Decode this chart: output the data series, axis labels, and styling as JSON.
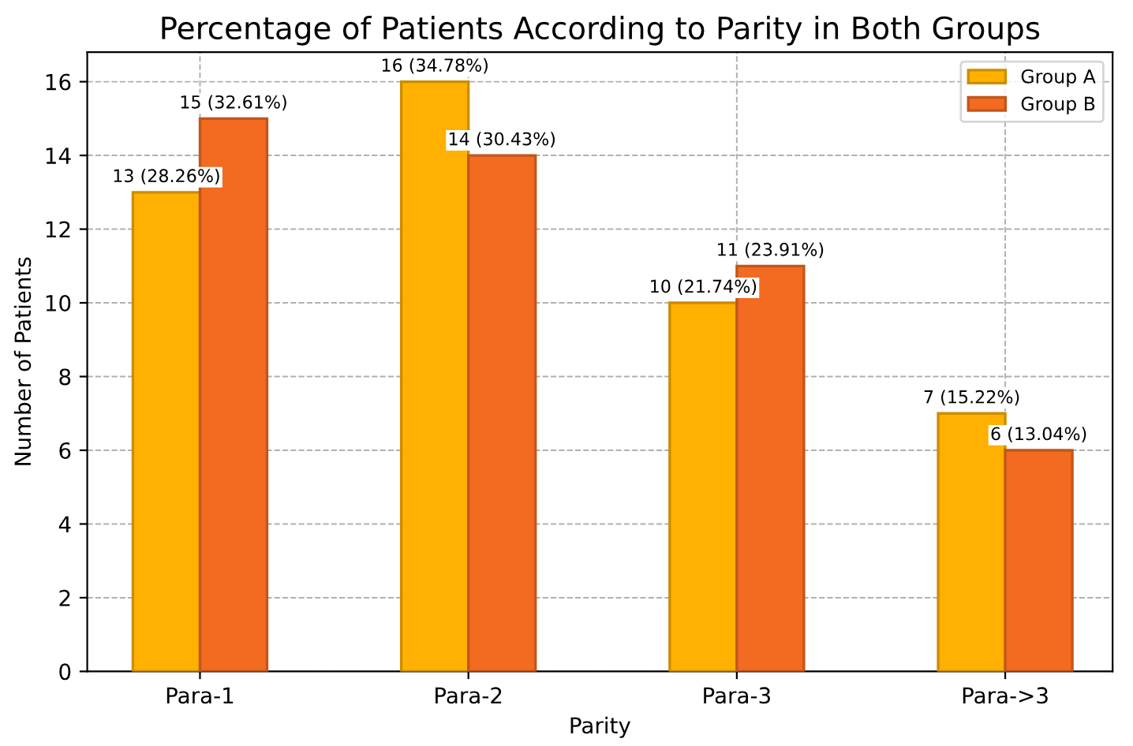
{
  "chart_data": {
    "type": "bar",
    "title": "Percentage of Patients According to Parity in Both Groups",
    "xlabel": "Parity",
    "ylabel": "Number of Patients",
    "categories": [
      "Para-1",
      "Para-2",
      "Para-3",
      "Para->3"
    ],
    "series": [
      {
        "name": "Group A",
        "color": "#ffb000",
        "values": [
          13,
          16,
          10,
          7
        ],
        "value_labels": [
          "13 (28.26%)",
          "16 (34.78%)",
          "10 (21.74%)",
          "7 (15.22%)"
        ]
      },
      {
        "name": "Group B",
        "color": "#f26b21",
        "values": [
          15,
          14,
          11,
          6
        ],
        "value_labels": [
          "15 (32.61%)",
          "14 (30.43%)",
          "11 (23.91%)",
          "6 (13.04%)"
        ]
      }
    ],
    "ylim": [
      0,
      16.8
    ],
    "yticks": [
      0,
      2,
      4,
      6,
      8,
      10,
      12,
      14,
      16
    ],
    "grid": true,
    "legend": "top right"
  }
}
